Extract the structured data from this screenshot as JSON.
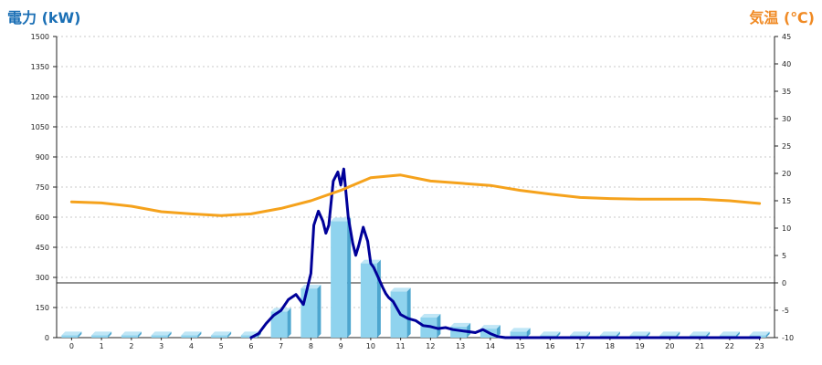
{
  "chart_data": {
    "type": "bar",
    "left_axis_title": "電力 (kW)",
    "right_axis_title": "気温 (℃)",
    "categories": [
      "0",
      "1",
      "2",
      "3",
      "4",
      "5",
      "6",
      "7",
      "8",
      "9",
      "10",
      "11",
      "12",
      "13",
      "14",
      "15",
      "16",
      "17",
      "18",
      "19",
      "20",
      "21",
      "22",
      "23"
    ],
    "y_left": {
      "min": 0,
      "max": 1500,
      "ticks": [
        0,
        150,
        300,
        450,
        600,
        750,
        900,
        1050,
        1200,
        1350,
        1500
      ]
    },
    "y_right": {
      "min": -10,
      "max": 45,
      "ticks": [
        -10,
        -5,
        0,
        5,
        10,
        15,
        20,
        25,
        30,
        35,
        40,
        45
      ]
    },
    "series": [
      {
        "kind": "bar",
        "axis": "left",
        "values": [
          12,
          12,
          12,
          12,
          12,
          12,
          12,
          130,
          245,
          580,
          370,
          230,
          100,
          55,
          45,
          30,
          12,
          12,
          12,
          12,
          12,
          12,
          12,
          12
        ]
      },
      {
        "kind": "line",
        "axis": "left",
        "x": [
          6.0,
          6.25,
          6.5,
          6.75,
          7.0,
          7.25,
          7.5,
          7.75,
          8.0,
          8.1,
          8.25,
          8.4,
          8.5,
          8.6,
          8.75,
          8.9,
          9.0,
          9.1,
          9.25,
          9.4,
          9.5,
          9.6,
          9.75,
          9.9,
          10.0,
          10.1,
          10.25,
          10.4,
          10.5,
          10.6,
          10.75,
          10.9,
          11.0,
          11.25,
          11.5,
          11.75,
          12.0,
          12.25,
          12.5,
          12.75,
          13.0,
          13.25,
          13.5,
          13.75,
          14.0,
          14.25,
          14.5,
          14.75,
          15.0,
          15.25,
          15.5,
          16,
          17,
          18,
          19,
          20,
          21,
          22,
          23
        ],
        "values": [
          0,
          20,
          70,
          110,
          135,
          190,
          215,
          165,
          320,
          560,
          630,
          580,
          520,
          560,
          780,
          825,
          760,
          840,
          600,
          470,
          410,
          460,
          550,
          480,
          370,
          350,
          300,
          250,
          220,
          200,
          180,
          140,
          115,
          95,
          85,
          60,
          55,
          45,
          50,
          40,
          35,
          30,
          25,
          40,
          20,
          5,
          0,
          0,
          0,
          0,
          0,
          0,
          0,
          0,
          0,
          0,
          0,
          0,
          0
        ]
      },
      {
        "kind": "line",
        "axis": "right",
        "x": [
          0,
          1,
          2,
          3,
          4,
          5,
          6,
          7,
          8,
          9,
          10,
          11,
          12,
          13,
          14,
          15,
          16,
          17,
          18,
          19,
          20,
          21,
          22,
          23
        ],
        "values": [
          14.8,
          14.6,
          14.0,
          13.0,
          12.6,
          12.3,
          12.6,
          13.6,
          15.0,
          16.9,
          19.2,
          19.7,
          18.6,
          18.2,
          17.8,
          16.9,
          16.2,
          15.6,
          15.4,
          15.3,
          15.3,
          15.3,
          15.0,
          14.5
        ]
      }
    ],
    "colors": {
      "bar": "#8fd3ee",
      "bar_side": "#4da6cf",
      "bar_top": "#bfe6f6",
      "power_line": "#000099",
      "temp_line": "#f5a21c",
      "grid": "#c8c8c8"
    }
  }
}
